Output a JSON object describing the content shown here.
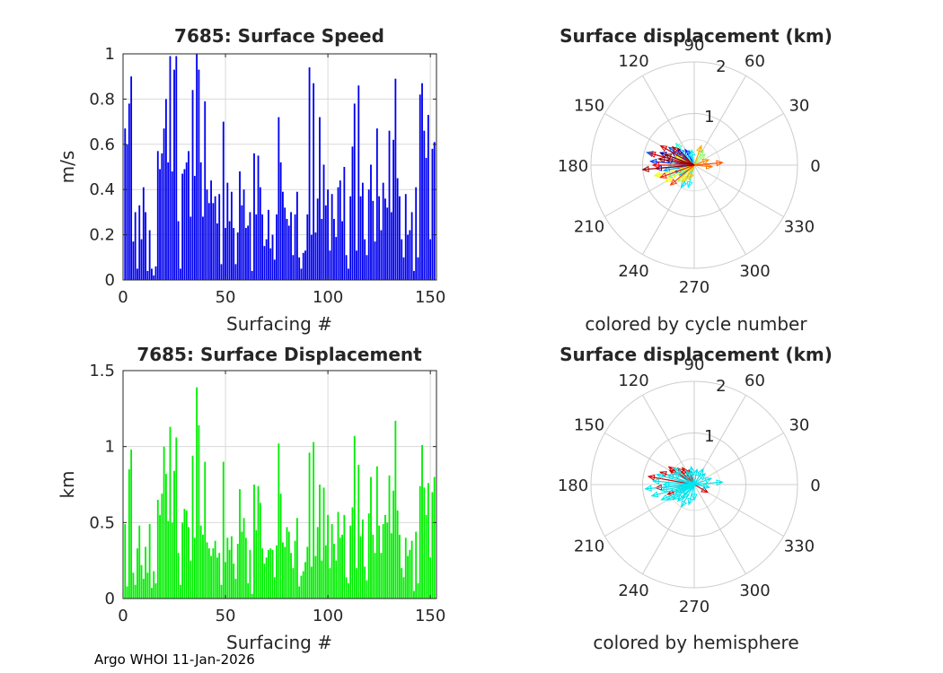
{
  "footer": "Argo WHOI 11-Jan-2026",
  "colors": {
    "speed_bar": "#0000ee",
    "disp_bar": "#00ee00",
    "north": "#d40000",
    "south": "#00e5ee",
    "grid": "#d9d9d9",
    "axis": "#262626"
  },
  "chart_data": [
    {
      "type": "bar",
      "title": "7685: Surface Speed",
      "xlabel": "Surfacing #",
      "ylabel": "m/s",
      "xlim": [
        0,
        153
      ],
      "ylim": [
        0,
        1
      ],
      "xticks": [
        "0",
        "50",
        "100",
        "150"
      ],
      "yticks": [
        "0",
        "0.2",
        "0.4",
        "0.6",
        "0.8",
        "1"
      ],
      "x": [
        1,
        2,
        3,
        4,
        5,
        6,
        7,
        8,
        9,
        10,
        11,
        12,
        13,
        14,
        15,
        16,
        17,
        18,
        19,
        20,
        21,
        22,
        23,
        24,
        25,
        26,
        27,
        28,
        29,
        30,
        31,
        32,
        33,
        34,
        35,
        36,
        37,
        38,
        39,
        40,
        41,
        42,
        43,
        44,
        45,
        46,
        47,
        48,
        49,
        50,
        51,
        52,
        53,
        54,
        55,
        56,
        57,
        58,
        59,
        60,
        61,
        62,
        63,
        64,
        65,
        66,
        67,
        68,
        69,
        70,
        71,
        72,
        73,
        74,
        75,
        76,
        77,
        78,
        79,
        80,
        81,
        82,
        83,
        84,
        85,
        86,
        87,
        88,
        89,
        90,
        91,
        92,
        93,
        94,
        95,
        96,
        97,
        98,
        99,
        100,
        101,
        102,
        103,
        104,
        105,
        106,
        107,
        108,
        109,
        110,
        111,
        112,
        113,
        114,
        115,
        116,
        117,
        118,
        119,
        120,
        121,
        122,
        123,
        124,
        125,
        126,
        127,
        128,
        129,
        130,
        131,
        132,
        133,
        134,
        135,
        136,
        137,
        138,
        139,
        140,
        141,
        142,
        143,
        144,
        145,
        146,
        147,
        148,
        149,
        150,
        151,
        152
      ],
      "values": [
        0.67,
        0.6,
        0.78,
        0.9,
        0.17,
        0.3,
        0.05,
        0.33,
        0.18,
        0.41,
        0.3,
        0.04,
        0.22,
        0.05,
        0.02,
        0.06,
        0.57,
        0.49,
        0.56,
        0.67,
        0.8,
        0.52,
        0.99,
        0.48,
        0.93,
        0.99,
        0.26,
        0.05,
        0.47,
        0.49,
        0.52,
        0.57,
        0.28,
        0.84,
        0.46,
        1.0,
        0.93,
        0.52,
        0.28,
        0.79,
        0.4,
        0.34,
        0.44,
        0.34,
        0.37,
        0.25,
        0.38,
        0.07,
        0.7,
        0.23,
        0.43,
        0.26,
        0.39,
        0.23,
        0.07,
        0.21,
        0.48,
        0.33,
        0.4,
        0.23,
        0.24,
        0.3,
        0.04,
        0.56,
        0.29,
        0.55,
        0.41,
        0.29,
        0.15,
        0.18,
        0.31,
        0.14,
        0.2,
        0.09,
        0.29,
        0.72,
        0.52,
        0.39,
        0.32,
        0.27,
        0.24,
        0.3,
        0.11,
        0.29,
        0.39,
        0.1,
        0.05,
        0.12,
        0.13,
        0.29,
        0.94,
        0.2,
        0.87,
        0.21,
        0.36,
        0.72,
        0.27,
        0.51,
        0.33,
        0.4,
        0.13,
        0.38,
        0.27,
        0.19,
        0.41,
        0.44,
        0.26,
        0.5,
        0.11,
        0.05,
        0.37,
        0.59,
        0.78,
        0.13,
        0.86,
        0.37,
        0.43,
        0.18,
        0.11,
        0.4,
        0.51,
        0.35,
        0.17,
        0.67,
        0.37,
        0.22,
        0.43,
        0.36,
        0.32,
        0.66,
        0.3,
        0.62,
        0.89,
        0.45,
        0.37,
        0.18,
        0.1,
        0.38,
        0.2,
        0.22,
        0.3,
        0.04,
        0.41,
        0.1,
        0.82,
        0.87,
        0.66,
        0.54,
        0.73,
        0.18,
        0.58,
        0.61
      ]
    },
    {
      "type": "bar",
      "title": "7685: Surface Displacement",
      "xlabel": "Surfacing #",
      "ylabel": "km",
      "xlim": [
        0,
        153
      ],
      "ylim": [
        0,
        1.5
      ],
      "xticks": [
        "0",
        "50",
        "100",
        "150"
      ],
      "yticks": [
        "0",
        "0.5",
        "1",
        "1.5"
      ],
      "x": [
        1,
        2,
        3,
        4,
        5,
        6,
        7,
        8,
        9,
        10,
        11,
        12,
        13,
        14,
        15,
        16,
        17,
        18,
        19,
        20,
        21,
        22,
        23,
        24,
        25,
        26,
        27,
        28,
        29,
        30,
        31,
        32,
        33,
        34,
        35,
        36,
        37,
        38,
        39,
        40,
        41,
        42,
        43,
        44,
        45,
        46,
        47,
        48,
        49,
        50,
        51,
        52,
        53,
        54,
        55,
        56,
        57,
        58,
        59,
        60,
        61,
        62,
        63,
        64,
        65,
        66,
        67,
        68,
        69,
        70,
        71,
        72,
        73,
        74,
        75,
        76,
        77,
        78,
        79,
        80,
        81,
        82,
        83,
        84,
        85,
        86,
        87,
        88,
        89,
        90,
        91,
        92,
        93,
        94,
        95,
        96,
        97,
        98,
        99,
        100,
        101,
        102,
        103,
        104,
        105,
        106,
        107,
        108,
        109,
        110,
        111,
        112,
        113,
        114,
        115,
        116,
        117,
        118,
        119,
        120,
        121,
        122,
        123,
        124,
        125,
        126,
        127,
        128,
        129,
        130,
        131,
        132,
        133,
        134,
        135,
        136,
        137,
        138,
        139,
        140,
        141,
        142,
        143,
        144,
        145,
        146,
        147,
        148,
        149,
        150,
        151,
        152
      ],
      "values": [
        0.49,
        0.08,
        0.85,
        0.98,
        0.17,
        0.09,
        0.33,
        0.48,
        0.22,
        0.13,
        0.34,
        0.17,
        0.49,
        0.07,
        0.18,
        0.1,
        0.65,
        0.55,
        0.69,
        1.0,
        0.82,
        0.51,
        1.13,
        0.5,
        0.84,
        1.06,
        0.3,
        0.09,
        0.5,
        0.59,
        0.58,
        0.47,
        0.25,
        0.94,
        0.4,
        1.39,
        1.14,
        0.48,
        0.42,
        0.9,
        0.37,
        0.33,
        0.28,
        0.33,
        0.38,
        0.27,
        0.3,
        0.09,
        0.9,
        0.24,
        0.4,
        0.32,
        0.41,
        0.23,
        0.13,
        0.36,
        0.72,
        0.44,
        0.53,
        0.4,
        0.1,
        0.32,
        0.03,
        0.75,
        0.45,
        0.74,
        0.63,
        0.33,
        0.23,
        0.27,
        0.32,
        0.33,
        0.32,
        0.14,
        0.35,
        1.02,
        0.69,
        0.37,
        0.34,
        0.47,
        0.44,
        0.3,
        0.2,
        0.38,
        0.53,
        0.08,
        0.15,
        0.18,
        0.24,
        0.34,
        0.96,
        0.21,
        1.03,
        0.28,
        0.47,
        0.75,
        0.25,
        0.73,
        0.35,
        0.55,
        0.2,
        0.49,
        0.36,
        0.25,
        0.57,
        0.4,
        0.42,
        0.55,
        0.14,
        0.1,
        0.48,
        0.6,
        1.07,
        0.2,
        0.88,
        0.41,
        0.52,
        0.21,
        0.12,
        0.56,
        0.8,
        0.42,
        0.3,
        0.87,
        0.48,
        0.3,
        0.49,
        0.55,
        0.5,
        0.81,
        0.43,
        0.71,
        1.17,
        0.58,
        0.42,
        0.2,
        0.14,
        0.4,
        0.28,
        0.32,
        0.38,
        0.05,
        0.44,
        0.1,
        0.74,
        1.01,
        0.73,
        0.55,
        0.76,
        0.27,
        0.7,
        0.8
      ]
    },
    {
      "type": "polar-vectors",
      "title": "Surface displacement (km)",
      "subtitle": "colored by cycle number",
      "rmax": 2,
      "radial_tick_labels": [
        "1",
        "2"
      ],
      "angle_labels": [
        "0",
        "30",
        "60",
        "90",
        "120",
        "150",
        "180",
        "210",
        "240",
        "270",
        "300",
        "330"
      ],
      "color_mode": "cycle",
      "vectors": [
        {
          "angle": 170,
          "r": 0.55,
          "cycle": 1
        },
        {
          "angle": 160,
          "r": 0.7,
          "cycle": 4
        },
        {
          "angle": 150,
          "r": 0.5,
          "cycle": 8
        },
        {
          "angle": 135,
          "r": 0.45,
          "cycle": 12
        },
        {
          "angle": 185,
          "r": 0.75,
          "cycle": 16
        },
        {
          "angle": 200,
          "r": 0.4,
          "cycle": 20
        },
        {
          "angle": 120,
          "r": 0.35,
          "cycle": 24
        },
        {
          "angle": 175,
          "r": 0.85,
          "cycle": 28
        },
        {
          "angle": 145,
          "r": 0.6,
          "cycle": 32
        },
        {
          "angle": 165,
          "r": 0.95,
          "cycle": 36
        },
        {
          "angle": 110,
          "r": 0.3,
          "cycle": 40
        },
        {
          "angle": 190,
          "r": 0.6,
          "cycle": 44
        },
        {
          "angle": 215,
          "r": 0.35,
          "cycle": 48
        },
        {
          "angle": 240,
          "r": 0.5,
          "cycle": 52
        },
        {
          "angle": 255,
          "r": 0.45,
          "cycle": 56
        },
        {
          "angle": 100,
          "r": 0.3,
          "cycle": 60
        },
        {
          "angle": 130,
          "r": 0.55,
          "cycle": 64
        },
        {
          "angle": 180,
          "r": 0.5,
          "cycle": 68
        },
        {
          "angle": 205,
          "r": 0.55,
          "cycle": 72
        },
        {
          "angle": 60,
          "r": 0.35,
          "cycle": 76
        },
        {
          "angle": 45,
          "r": 0.3,
          "cycle": 80
        },
        {
          "angle": 225,
          "r": 0.45,
          "cycle": 84
        },
        {
          "angle": 155,
          "r": 0.4,
          "cycle": 88
        },
        {
          "angle": 195,
          "r": 0.8,
          "cycle": 92
        },
        {
          "angle": 210,
          "r": 0.65,
          "cycle": 96
        },
        {
          "angle": 235,
          "r": 0.4,
          "cycle": 100
        },
        {
          "angle": 250,
          "r": 0.3,
          "cycle": 104
        },
        {
          "angle": 70,
          "r": 0.4,
          "cycle": 108
        },
        {
          "angle": 20,
          "r": 0.3,
          "cycle": 112
        },
        {
          "angle": 355,
          "r": 0.35,
          "cycle": 116
        },
        {
          "angle": 5,
          "r": 0.55,
          "cycle": 120
        },
        {
          "angle": 220,
          "r": 0.6,
          "cycle": 124
        },
        {
          "angle": 200,
          "r": 0.7,
          "cycle": 128
        },
        {
          "angle": 180,
          "r": 0.8,
          "cycle": 132
        },
        {
          "angle": 165,
          "r": 0.9,
          "cycle": 136
        },
        {
          "angle": 150,
          "r": 0.75,
          "cycle": 140
        },
        {
          "angle": 140,
          "r": 0.55,
          "cycle": 144
        },
        {
          "angle": 185,
          "r": 1.0,
          "cycle": 148
        },
        {
          "angle": 170,
          "r": 0.7,
          "cycle": 150
        },
        {
          "angle": 160,
          "r": 0.6,
          "cycle": 152
        }
      ]
    },
    {
      "type": "polar-vectors",
      "title": "Surface displacement (km)",
      "subtitle": "colored by hemisphere",
      "rmax": 2,
      "radial_tick_labels": [
        "1",
        "2"
      ],
      "angle_labels": [
        "0",
        "30",
        "60",
        "90",
        "120",
        "150",
        "180",
        "210",
        "240",
        "270",
        "300",
        "330"
      ],
      "color_mode": "hemisphere",
      "vectors": [
        {
          "angle": 160,
          "r": 0.7,
          "hemisphere": "north"
        },
        {
          "angle": 150,
          "r": 0.55,
          "hemisphere": "north"
        },
        {
          "angle": 170,
          "r": 0.9,
          "hemisphere": "north"
        },
        {
          "angle": 135,
          "r": 0.45,
          "hemisphere": "north"
        },
        {
          "angle": 145,
          "r": 0.6,
          "hemisphere": "north"
        },
        {
          "angle": 185,
          "r": 0.75,
          "hemisphere": "north"
        },
        {
          "angle": 200,
          "r": 0.55,
          "hemisphere": "north"
        },
        {
          "angle": 110,
          "r": 0.3,
          "hemisphere": "north"
        },
        {
          "angle": 330,
          "r": 0.3,
          "hemisphere": "north"
        },
        {
          "angle": 125,
          "r": 0.4,
          "hemisphere": "north"
        },
        {
          "angle": 175,
          "r": 0.8,
          "hemisphere": "south"
        },
        {
          "angle": 190,
          "r": 0.65,
          "hemisphere": "south"
        },
        {
          "angle": 205,
          "r": 0.7,
          "hemisphere": "south"
        },
        {
          "angle": 215,
          "r": 0.5,
          "hemisphere": "south"
        },
        {
          "angle": 225,
          "r": 0.45,
          "hemisphere": "south"
        },
        {
          "angle": 240,
          "r": 0.5,
          "hemisphere": "south"
        },
        {
          "angle": 255,
          "r": 0.4,
          "hemisphere": "south"
        },
        {
          "angle": 270,
          "r": 0.3,
          "hemisphere": "south"
        },
        {
          "angle": 160,
          "r": 0.55,
          "hemisphere": "south"
        },
        {
          "angle": 150,
          "r": 0.45,
          "hemisphere": "south"
        },
        {
          "angle": 140,
          "r": 0.5,
          "hemisphere": "south"
        },
        {
          "angle": 100,
          "r": 0.35,
          "hemisphere": "south"
        },
        {
          "angle": 80,
          "r": 0.3,
          "hemisphere": "south"
        },
        {
          "angle": 60,
          "r": 0.35,
          "hemisphere": "south"
        },
        {
          "angle": 45,
          "r": 0.3,
          "hemisphere": "south"
        },
        {
          "angle": 20,
          "r": 0.35,
          "hemisphere": "south"
        },
        {
          "angle": 5,
          "r": 0.55,
          "hemisphere": "south"
        },
        {
          "angle": 350,
          "r": 0.3,
          "hemisphere": "south"
        },
        {
          "angle": 195,
          "r": 0.85,
          "hemisphere": "south"
        },
        {
          "angle": 180,
          "r": 0.6,
          "hemisphere": "south"
        },
        {
          "angle": 210,
          "r": 0.6,
          "hemisphere": "south"
        },
        {
          "angle": 230,
          "r": 0.35,
          "hemisphere": "south"
        },
        {
          "angle": 120,
          "r": 0.3,
          "hemisphere": "south"
        },
        {
          "angle": 165,
          "r": 0.75,
          "hemisphere": "south"
        },
        {
          "angle": 185,
          "r": 0.95,
          "hemisphere": "south"
        },
        {
          "angle": 200,
          "r": 0.4,
          "hemisphere": "south"
        }
      ]
    }
  ]
}
